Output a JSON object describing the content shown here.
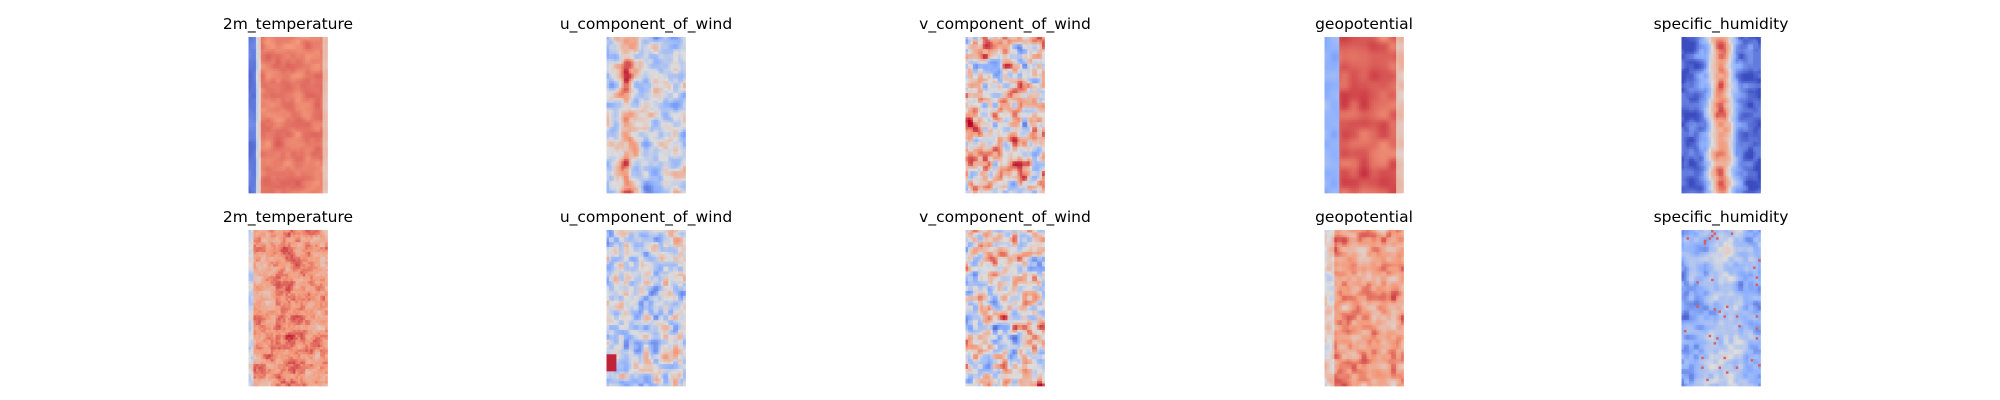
{
  "chart_data": {
    "type": "heatmap",
    "colormap": "coolwarm",
    "colors": {
      "low": "#3b4cc0",
      "mid": "#dddddd",
      "high": "#b40426"
    },
    "axes_visible": false,
    "grid": false,
    "rows": [
      {
        "panels": [
          {
            "title": "2m_temperature",
            "pattern": "temp",
            "seed": 11
          },
          {
            "title": "u_component_of_wind",
            "pattern": "uwind",
            "seed": 23
          },
          {
            "title": "v_component_of_wind",
            "pattern": "vwind",
            "seed": 37
          },
          {
            "title": "geopotential",
            "pattern": "geo",
            "seed": 41
          },
          {
            "title": "specific_humidity",
            "pattern": "hum",
            "seed": 53
          }
        ]
      },
      {
        "panels": [
          {
            "title": "2m_temperature",
            "pattern": "temp_noisy",
            "seed": 61
          },
          {
            "title": "u_component_of_wind",
            "pattern": "uwind_noisy",
            "seed": 73
          },
          {
            "title": "v_component_of_wind",
            "pattern": "vwind_noisy",
            "seed": 89
          },
          {
            "title": "geopotential",
            "pattern": "geo_noisy",
            "seed": 97
          },
          {
            "title": "specific_humidity",
            "pattern": "hum_noisy",
            "seed": 101
          }
        ]
      }
    ]
  }
}
